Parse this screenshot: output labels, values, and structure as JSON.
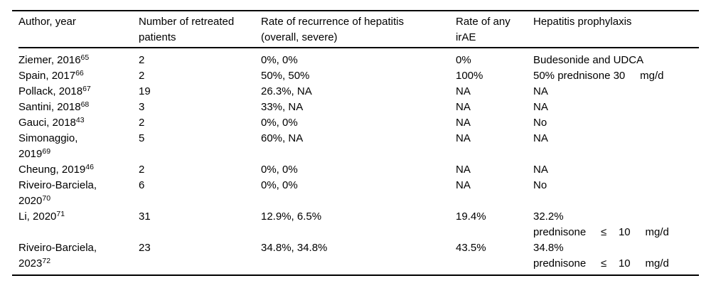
{
  "page": {
    "background": "#ffffff",
    "text_color": "#000000",
    "rule_color": "#000000"
  },
  "table": {
    "name": "hepatitis-retreatment-studies-table",
    "columns": [
      {
        "id": "author",
        "label": "Author, year"
      },
      {
        "id": "retreated",
        "label": "Number of retreated\npatients"
      },
      {
        "id": "recurrence",
        "label": "Rate of recurrence of hepatitis\n(overall, severe)"
      },
      {
        "id": "irae",
        "label": "Rate of any\nirAE"
      },
      {
        "id": "prophylaxis",
        "label": "Hepatitis prophylaxis"
      }
    ],
    "rows": [
      {
        "author": "Ziemer, 2016^{65}",
        "retreated": "2",
        "recurrence": "0%, 0%",
        "irae": "0%",
        "prophylaxis": "Budesonide and UDCA"
      },
      {
        "author": "Spain, 2017^{66}",
        "retreated": "2",
        "recurrence": "50%, 50%",
        "irae": "100%",
        "prophylaxis": "50% prednisone 30     mg/d"
      },
      {
        "author": "Pollack, 2018^{67}",
        "retreated": "19",
        "recurrence": "26.3%, NA",
        "irae": "NA",
        "prophylaxis": "NA"
      },
      {
        "author": "Santini, 2018^{68}",
        "retreated": "3",
        "recurrence": "33%, NA",
        "irae": "NA",
        "prophylaxis": "NA"
      },
      {
        "author": "Gauci, 2018^{43}",
        "retreated": "2",
        "recurrence": "0%, 0%",
        "irae": "NA",
        "prophylaxis": "No"
      },
      {
        "author": "Simonaggio,\n2019^{69}",
        "retreated": "5",
        "recurrence": "60%, NA",
        "irae": "NA",
        "prophylaxis": "NA"
      },
      {
        "author": "Cheung, 2019^{46}",
        "retreated": "2",
        "recurrence": "0%, 0%",
        "irae": "NA",
        "prophylaxis": "NA"
      },
      {
        "author": "Riveiro-Barciela,\n2020^{70}",
        "retreated": "6",
        "recurrence": "0%, 0%",
        "irae": "NA",
        "prophylaxis": "No"
      },
      {
        "author": "Li, 2020^{71}",
        "retreated": "31",
        "recurrence": "12.9%, 6.5%",
        "irae": "19.4%",
        "prophylaxis": "32.2%\nprednisone     ≤    10     mg/d"
      },
      {
        "author": "Riveiro-Barciela,\n2023^{72}",
        "retreated": "23",
        "recurrence": "34.8%, 34.8%",
        "irae": "43.5%",
        "prophylaxis": "34.8%\nprednisone     ≤    10     mg/d"
      }
    ]
  }
}
